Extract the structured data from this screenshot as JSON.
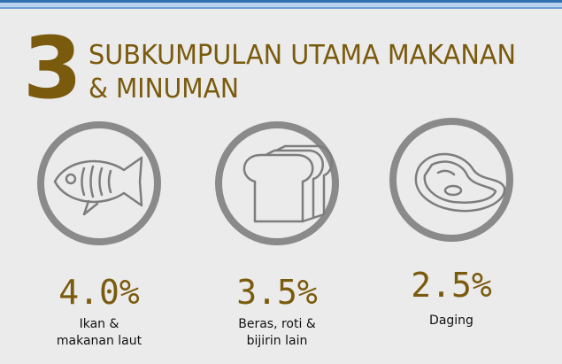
{
  "header": {
    "number": "3",
    "title_lines": [
      "SUBKUMPULAN UTAMA MAKANAN",
      "& MINUMAN"
    ]
  },
  "items": [
    {
      "value": "4.0%",
      "label": [
        "Ikan &",
        "makanan laut"
      ]
    },
    {
      "value": "3.5%",
      "label": [
        "Beras, roti &",
        "bijirin lain"
      ]
    },
    {
      "value": "2.5%",
      "label": [
        "Daging"
      ]
    }
  ]
}
